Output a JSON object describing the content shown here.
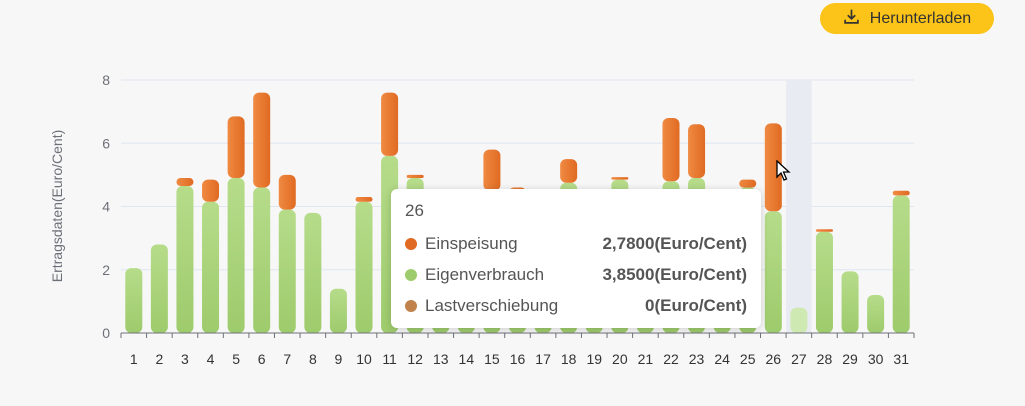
{
  "download_button": {
    "label": "Herunterladen",
    "icon": "download-icon"
  },
  "colors": {
    "einspeisung_top": "#f08a42",
    "einspeisung_bottom": "#e06a22",
    "eigenverbrauch_top": "#b6dc8a",
    "eigenverbrauch_bottom": "#9ecb6c",
    "lastverschiebung": "#c0824a",
    "axis": "#6e7079",
    "grid": "#e0e6f1",
    "hover_band": "#e9ebf2"
  },
  "chart_data": {
    "type": "bar",
    "stacked": true,
    "ylabel": "Ertragsdaten(Euro/Cent)",
    "xlabel": "",
    "ylim": [
      0,
      8
    ],
    "yticks": [
      0,
      2,
      4,
      6,
      8
    ],
    "grid": true,
    "categories": [
      "1",
      "2",
      "3",
      "4",
      "5",
      "6",
      "7",
      "8",
      "9",
      "10",
      "11",
      "12",
      "13",
      "14",
      "15",
      "16",
      "17",
      "18",
      "19",
      "20",
      "21",
      "22",
      "23",
      "24",
      "25",
      "26",
      "27",
      "28",
      "29",
      "30",
      "31"
    ],
    "series": [
      {
        "name": "Eigenverbrauch",
        "values": [
          2.05,
          2.8,
          4.65,
          4.15,
          4.9,
          4.6,
          3.9,
          3.8,
          1.4,
          4.15,
          5.6,
          4.9,
          4.3,
          4.2,
          4.5,
          4.3,
          4.2,
          4.75,
          4.3,
          4.85,
          4.4,
          4.8,
          4.9,
          4.4,
          4.6,
          3.85,
          0.8,
          3.2,
          1.95,
          1.2,
          4.35
        ]
      },
      {
        "name": "Einspeisung",
        "values": [
          0,
          0,
          0.25,
          0.7,
          1.95,
          3.0,
          1.1,
          0,
          0,
          0.15,
          2.0,
          0.1,
          0,
          0,
          1.3,
          0.3,
          0,
          0.75,
          0,
          0.07,
          0,
          2.0,
          1.7,
          0,
          0.25,
          2.78,
          0,
          0.08,
          0,
          0,
          0.15
        ]
      },
      {
        "name": "Lastverschiebung",
        "values": [
          0,
          0,
          0,
          0,
          0,
          0,
          0,
          0,
          0,
          0,
          0,
          0,
          0,
          0,
          0,
          0,
          0,
          0,
          0,
          0,
          0,
          0,
          0,
          0,
          0,
          0,
          0,
          0,
          0,
          0,
          0
        ]
      }
    ],
    "highlighted_category": "27",
    "tooltip": {
      "title": "26",
      "rows": [
        {
          "name": "Einspeisung",
          "value": "2,7800(Euro/Cent)",
          "color": "#e06a22"
        },
        {
          "name": "Eigenverbrauch",
          "value": "3,8500(Euro/Cent)",
          "color": "#9ecb6c"
        },
        {
          "name": "Lastverschiebung",
          "value": "0(Euro/Cent)",
          "color": "#c0824a"
        }
      ]
    }
  }
}
